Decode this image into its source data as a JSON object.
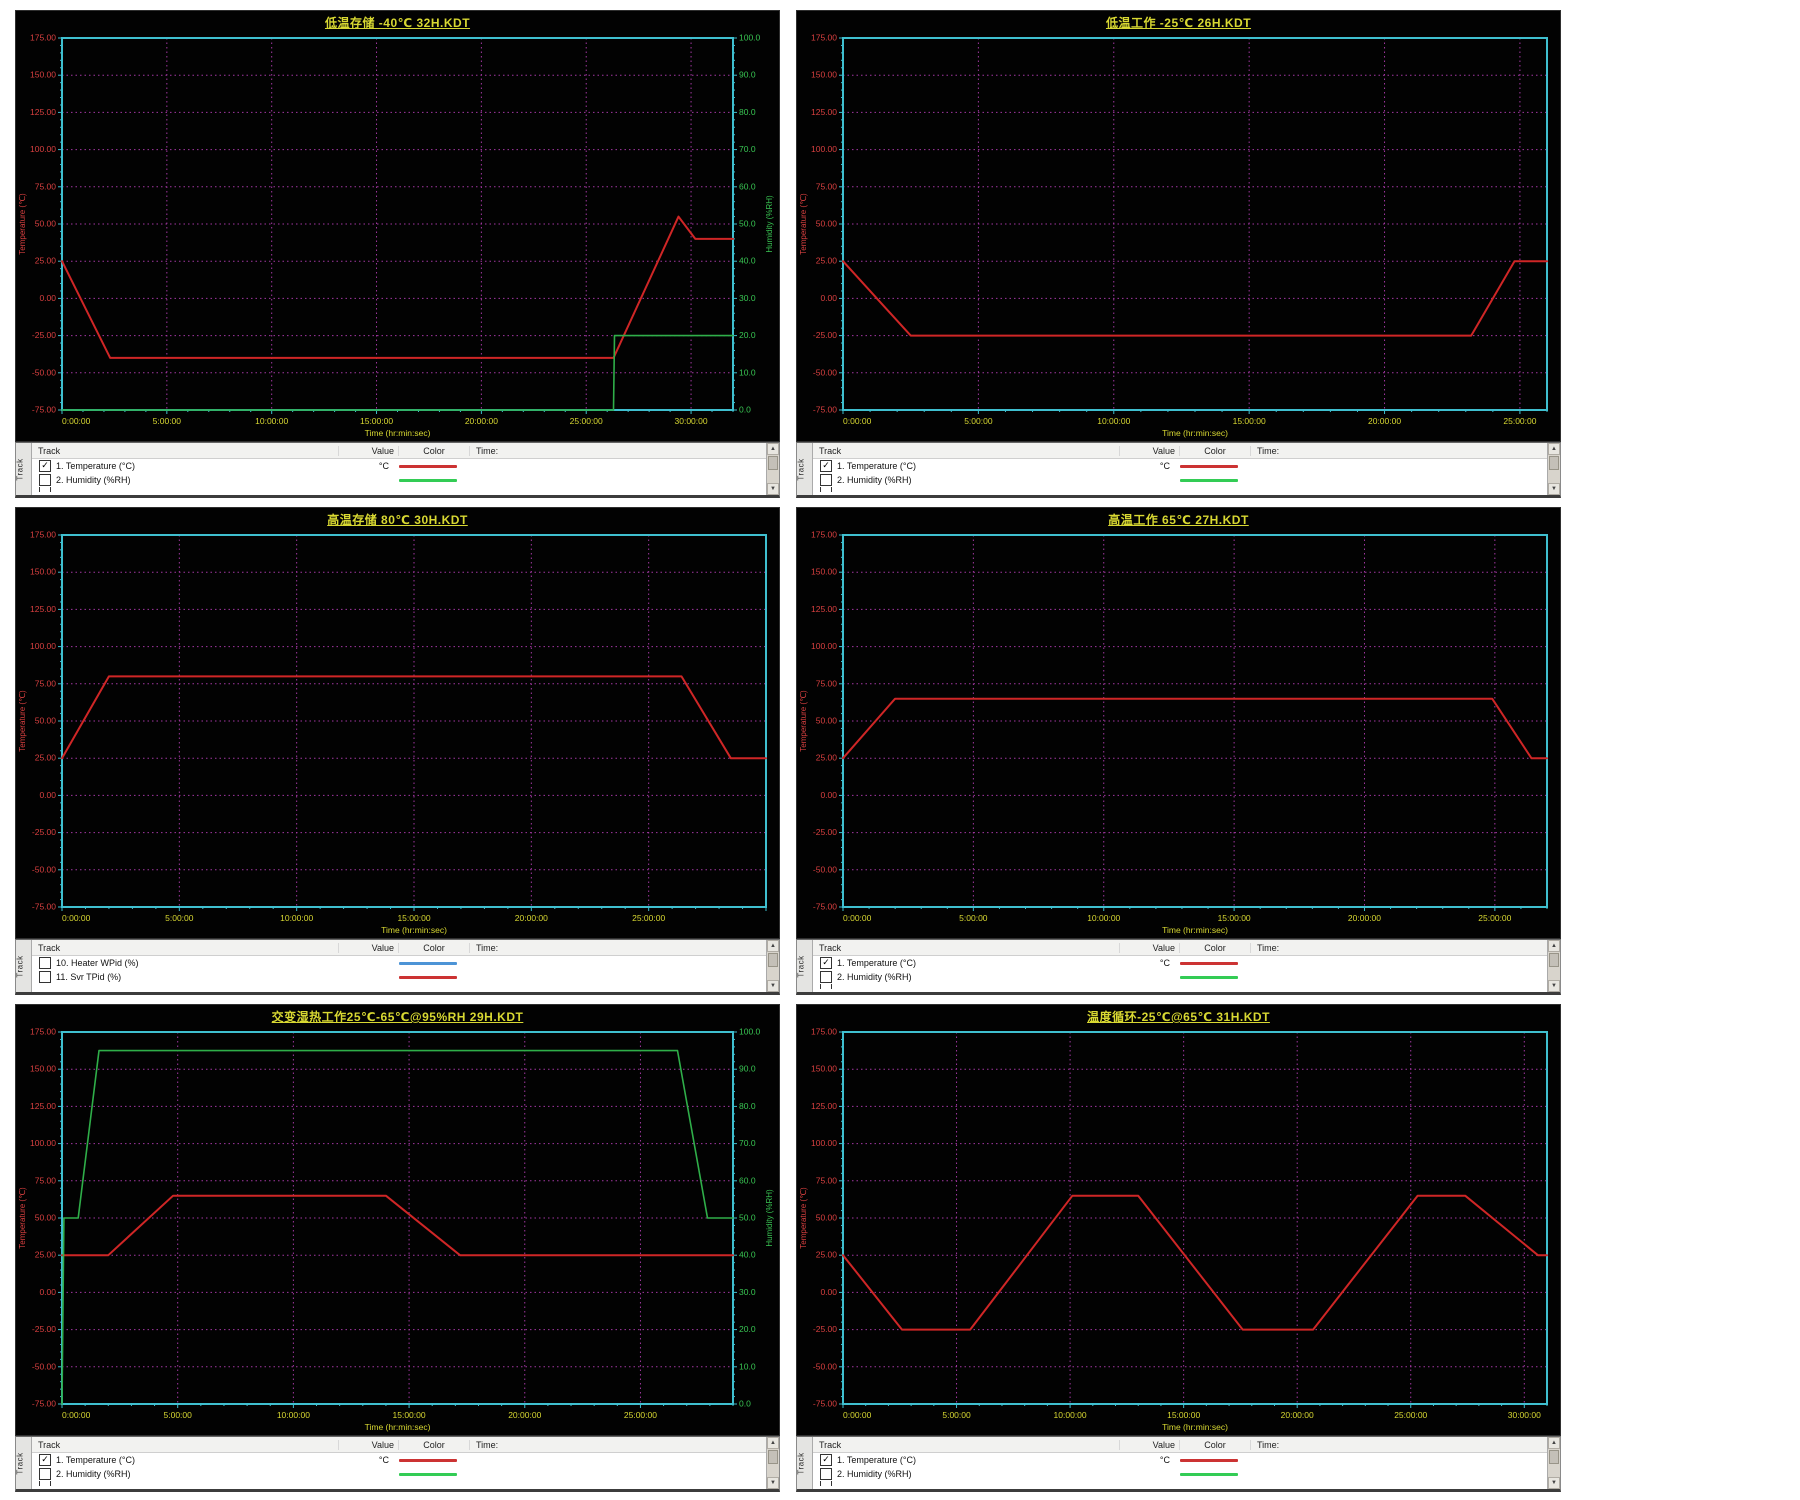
{
  "colors": {
    "plot_bg": "#020202",
    "border_cyan": "#3fbfcf",
    "grid_magenta": "#aa3aaa",
    "temp_red": "#d94040",
    "temp_line": "#cf2626",
    "humidity_green": "#39c653",
    "axis_yellow": "#d8d832",
    "legend_blue": "#4d94d6"
  },
  "legend": {
    "tab": "Track",
    "headers": [
      "Track",
      "Value",
      "Color",
      "Time:"
    ],
    "scroll_up": "▲",
    "scroll_down": "▼"
  },
  "axis_defaults": {
    "temp_ticks": [
      175,
      150,
      125,
      100,
      75,
      50,
      25,
      0,
      -25,
      -50,
      -75
    ],
    "humidity_ticks": [
      100,
      90,
      80,
      70,
      60,
      50,
      40,
      30,
      20,
      10,
      0
    ]
  },
  "chart_data": [
    {
      "type": "line",
      "title": "低温存储 -40℃ 32H.KDT",
      "xlabel": "Time (hr:min:sec)",
      "ylabel_left": "Temperature (℃)",
      "ylabel_right": "Humidity (%RH)",
      "ylim_left": [
        -75,
        175
      ],
      "ylim_right": [
        0,
        100
      ],
      "x_max_hours": 32,
      "x_tick_hours": [
        0,
        5,
        10,
        15,
        20,
        25,
        30
      ],
      "x_tick_labels": [
        "0:00:00",
        "5:00:00",
        "10:00:00",
        "15:00:00",
        "20:00:00",
        "25:00:00",
        "30:00:00"
      ],
      "series": [
        {
          "name": "Temperature (°C)",
          "axis": "left",
          "color": "#cf2626",
          "width": 2,
          "points": [
            [
              0,
              25
            ],
            [
              2.3,
              -40
            ],
            [
              26.3,
              -40
            ],
            [
              29.4,
              55
            ],
            [
              30.2,
              40
            ],
            [
              32,
              40
            ]
          ]
        },
        {
          "name": "Humidity (%RH)",
          "axis": "right",
          "color": "#2fae49",
          "width": 1.6,
          "points": [
            [
              0,
              0
            ],
            [
              26.3,
              0
            ],
            [
              26.35,
              20
            ],
            [
              32,
              20
            ]
          ]
        }
      ],
      "legend_rows": [
        {
          "checked": true,
          "label": "1. Temperature (°C)",
          "value": "°C",
          "color": "#cc3333"
        },
        {
          "checked": false,
          "label": "2. Humidity (%RH)",
          "value": "",
          "color": "#33cc55"
        }
      ],
      "partial_third_row": true
    },
    {
      "type": "line",
      "title": "低温工作 -25℃ 26H.KDT",
      "xlabel": "Time (hr:min:sec)",
      "ylabel_left": "Temperature (℃)",
      "ylabel_right": null,
      "ylim_left": [
        -75,
        175
      ],
      "ylim_right": null,
      "x_max_hours": 26,
      "x_tick_hours": [
        0,
        5,
        10,
        15,
        20,
        25
      ],
      "x_tick_labels": [
        "0:00:00",
        "5:00:00",
        "10:00:00",
        "15:00:00",
        "20:00:00",
        "25:00:00"
      ],
      "series": [
        {
          "name": "Temperature (°C)",
          "axis": "left",
          "color": "#cf2626",
          "width": 2,
          "points": [
            [
              0,
              25
            ],
            [
              2.5,
              -25
            ],
            [
              23.2,
              -25
            ],
            [
              24.8,
              25
            ],
            [
              26,
              25
            ]
          ]
        }
      ],
      "legend_rows": [
        {
          "checked": true,
          "label": "1. Temperature (°C)",
          "value": "°C",
          "color": "#cc3333"
        },
        {
          "checked": false,
          "label": "2. Humidity (%RH)",
          "value": "",
          "color": "#33cc55"
        }
      ],
      "partial_third_row": true
    },
    {
      "type": "line",
      "title": "高温存储 80℃ 30H.KDT",
      "xlabel": "Time (hr:min:sec)",
      "ylabel_left": "Temperature (℃)",
      "ylabel_right": null,
      "ylim_left": [
        -75,
        175
      ],
      "ylim_right": null,
      "x_max_hours": 30,
      "x_tick_hours": [
        0,
        5,
        10,
        15,
        20,
        25
      ],
      "x_tick_labels": [
        "0:00:00",
        "5:00:00",
        "10:00:00",
        "15:00:00",
        "20:00:00",
        "25:00:00"
      ],
      "series": [
        {
          "name": "Temperature (°C)",
          "axis": "left",
          "color": "#cf2626",
          "width": 2,
          "points": [
            [
              0,
              25
            ],
            [
              2,
              80
            ],
            [
              26.4,
              80
            ],
            [
              28.5,
              25
            ],
            [
              30,
              25
            ]
          ]
        }
      ],
      "legend_rows": [
        {
          "checked": false,
          "label": "10. Heater WPid (%)",
          "value": "",
          "color": "#4d94d6"
        },
        {
          "checked": false,
          "label": "11. Svr TPid (%)",
          "value": "",
          "color": "#cc3333"
        }
      ],
      "partial_third_row": false
    },
    {
      "type": "line",
      "title": "高温工作 65℃ 27H.KDT",
      "xlabel": "Time (hr:min:sec)",
      "ylabel_left": "Temperature (℃)",
      "ylabel_right": null,
      "ylim_left": [
        -75,
        175
      ],
      "ylim_right": null,
      "x_max_hours": 27,
      "x_tick_hours": [
        0,
        5,
        10,
        15,
        20,
        25
      ],
      "x_tick_labels": [
        "0:00:00",
        "5:00:00",
        "10:00:00",
        "15:00:00",
        "20:00:00",
        "25:00:00"
      ],
      "series": [
        {
          "name": "Temperature (°C)",
          "axis": "left",
          "color": "#cf2626",
          "width": 2,
          "points": [
            [
              0,
              25
            ],
            [
              2,
              65
            ],
            [
              24.9,
              65
            ],
            [
              26.4,
              25
            ],
            [
              27,
              25
            ]
          ]
        }
      ],
      "legend_rows": [
        {
          "checked": true,
          "label": "1. Temperature (°C)",
          "value": "°C",
          "color": "#cc3333"
        },
        {
          "checked": false,
          "label": "2. Humidity (%RH)",
          "value": "",
          "color": "#33cc55"
        }
      ],
      "partial_third_row": true
    },
    {
      "type": "line",
      "title": "交变湿热工作25℃-65℃@95%RH 29H.KDT",
      "xlabel": "Time (hr:min:sec)",
      "ylabel_left": "Temperature (℃)",
      "ylabel_right": "Humidity (%RH)",
      "ylim_left": [
        -75,
        175
      ],
      "ylim_right": [
        0,
        100
      ],
      "x_max_hours": 29,
      "x_tick_hours": [
        0,
        5,
        10,
        15,
        20,
        25
      ],
      "x_tick_labels": [
        "0:00:00",
        "5:00:00",
        "10:00:00",
        "15:00:00",
        "20:00:00",
        "25:00:00"
      ],
      "series": [
        {
          "name": "Temperature (°C)",
          "axis": "left",
          "color": "#cf2626",
          "width": 2,
          "points": [
            [
              0,
              25
            ],
            [
              2,
              25
            ],
            [
              4.8,
              65
            ],
            [
              14,
              65
            ],
            [
              17.2,
              25
            ],
            [
              29,
              25
            ]
          ]
        },
        {
          "name": "Humidity (%RH)",
          "axis": "right",
          "color": "#2fae49",
          "width": 1.6,
          "points": [
            [
              0,
              0
            ],
            [
              0.08,
              50
            ],
            [
              0.7,
              50
            ],
            [
              1.6,
              95
            ],
            [
              26.6,
              95
            ],
            [
              27.9,
              50
            ],
            [
              29,
              50
            ]
          ]
        }
      ],
      "legend_rows": [
        {
          "checked": true,
          "label": "1. Temperature (°C)",
          "value": "°C",
          "color": "#cc3333"
        },
        {
          "checked": false,
          "label": "2. Humidity (%RH)",
          "value": "",
          "color": "#33cc55"
        }
      ],
      "partial_third_row": true
    },
    {
      "type": "line",
      "title": "温度循环-25℃@65℃ 31H.KDT",
      "xlabel": "Time (hr:min:sec)",
      "ylabel_left": "Temperature (℃)",
      "ylabel_right": null,
      "ylim_left": [
        -75,
        175
      ],
      "ylim_right": null,
      "x_max_hours": 31,
      "x_tick_hours": [
        0,
        5,
        10,
        15,
        20,
        25,
        30
      ],
      "x_tick_labels": [
        "0:00:00",
        "5:00:00",
        "10:00:00",
        "15:00:00",
        "20:00:00",
        "25:00:00",
        "30:00:00"
      ],
      "series": [
        {
          "name": "Temperature (°C)",
          "axis": "left",
          "color": "#cf2626",
          "width": 2,
          "points": [
            [
              0,
              25
            ],
            [
              2.6,
              -25
            ],
            [
              5.6,
              -25
            ],
            [
              10.1,
              65
            ],
            [
              13,
              65
            ],
            [
              17.6,
              -25
            ],
            [
              20.7,
              -25
            ],
            [
              25.3,
              65
            ],
            [
              27.4,
              65
            ],
            [
              30.6,
              25
            ],
            [
              31,
              25
            ]
          ]
        }
      ],
      "legend_rows": [
        {
          "checked": true,
          "label": "1. Temperature (°C)",
          "value": "°C",
          "color": "#cc3333"
        },
        {
          "checked": false,
          "label": "2. Humidity (%RH)",
          "value": "",
          "color": "#33cc55"
        }
      ],
      "partial_third_row": true
    }
  ]
}
